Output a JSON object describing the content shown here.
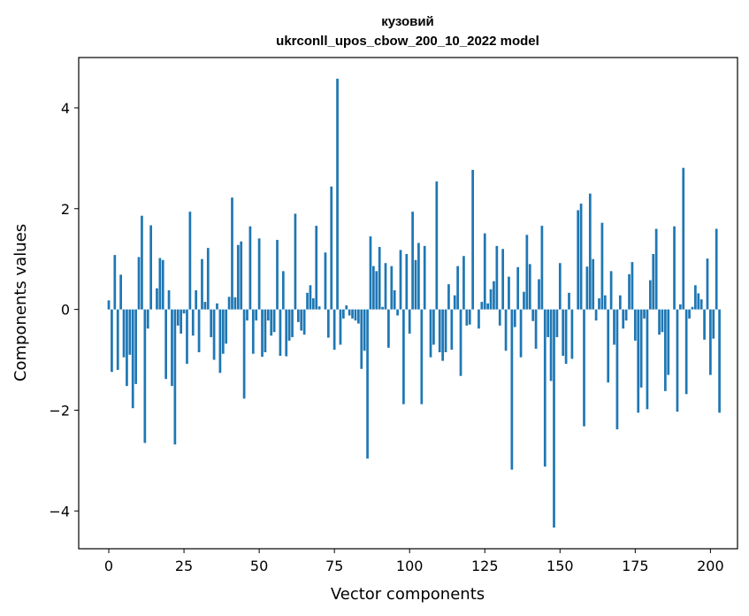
{
  "chart_data": {
    "type": "bar",
    "title": "кузовий",
    "subtitle": "ukrconll_upos_cbow_200_10_2022 model",
    "xlabel": "Vector components",
    "ylabel": "Components values",
    "xlim": [
      -10,
      209
    ],
    "ylim": [
      -4.75,
      5.0
    ],
    "xticks": [
      0,
      25,
      50,
      75,
      100,
      125,
      150,
      175,
      200
    ],
    "yticks": [
      -4,
      -2,
      0,
      2,
      4
    ],
    "xtick_labels": [
      "0",
      "25",
      "50",
      "75",
      "100",
      "125",
      "150",
      "175",
      "200"
    ],
    "ytick_labels": [
      "−4",
      "−2",
      "0",
      "2",
      "4"
    ],
    "bar_color": "#1f77b4",
    "values": [
      0.18,
      -1.24,
      1.08,
      -1.2,
      0.69,
      -0.95,
      -1.52,
      -0.9,
      -1.96,
      -1.48,
      1.04,
      1.86,
      -2.65,
      -0.38,
      1.67,
      0.0,
      0.42,
      1.02,
      0.98,
      -1.38,
      0.38,
      -1.52,
      -2.68,
      -0.32,
      -0.48,
      -0.08,
      -1.08,
      1.94,
      -0.52,
      0.38,
      -0.85,
      1.0,
      0.15,
      1.22,
      -0.55,
      -1.0,
      0.12,
      -1.26,
      -0.88,
      -0.68,
      0.25,
      2.22,
      0.24,
      1.28,
      1.35,
      -1.77,
      -0.22,
      1.65,
      -0.88,
      -0.22,
      1.41,
      -0.94,
      -0.85,
      -0.22,
      -0.52,
      -0.45,
      1.38,
      -0.92,
      0.76,
      -0.93,
      -0.62,
      -0.55,
      1.9,
      -0.25,
      -0.42,
      -0.5,
      0.33,
      0.48,
      0.22,
      1.66,
      0.06,
      0.0,
      1.13,
      -0.56,
      2.44,
      -0.8,
      4.58,
      -0.7,
      -0.18,
      0.08,
      -0.12,
      -0.18,
      -0.22,
      -0.28,
      -1.18,
      -0.82,
      -2.96,
      1.45,
      0.86,
      0.76,
      1.24,
      0.05,
      0.92,
      -0.76,
      0.86,
      0.38,
      -0.12,
      1.18,
      -1.88,
      1.1,
      -0.48,
      1.94,
      0.98,
      1.32,
      -1.88,
      1.26,
      0.0,
      -0.95,
      -0.7,
      2.54,
      -0.85,
      -1.02,
      -0.85,
      0.5,
      -0.8,
      0.28,
      0.86,
      -1.32,
      1.06,
      -0.32,
      -0.3,
      2.77,
      0.0,
      -0.38,
      0.15,
      1.51,
      0.12,
      0.4,
      0.56,
      1.26,
      -0.32,
      1.2,
      -0.82,
      0.65,
      -3.18,
      -0.35,
      0.84,
      -0.95,
      0.35,
      1.48,
      0.9,
      -0.23,
      -0.78,
      0.6,
      1.66,
      -3.12,
      -0.55,
      -1.42,
      -4.33,
      -0.55,
      0.92,
      -0.92,
      -1.08,
      0.33,
      -0.98,
      0.0,
      1.97,
      2.1,
      -2.32,
      0.85,
      2.3,
      1.0,
      -0.22,
      0.22,
      1.72,
      0.28,
      -1.45,
      0.76,
      -0.7,
      -2.38,
      0.28,
      -0.38,
      -0.22,
      0.7,
      0.94,
      -0.62,
      -2.05,
      -1.55,
      -0.18,
      -1.98,
      0.58,
      1.1,
      1.6,
      -0.5,
      -0.45,
      -1.62,
      -1.3,
      0.0,
      1.65,
      -2.03,
      0.1,
      2.81,
      -1.68,
      -0.18,
      0.05,
      0.48,
      0.32,
      0.2,
      -0.6,
      1.01,
      -1.3,
      -0.58,
      1.6,
      -2.05
    ]
  }
}
